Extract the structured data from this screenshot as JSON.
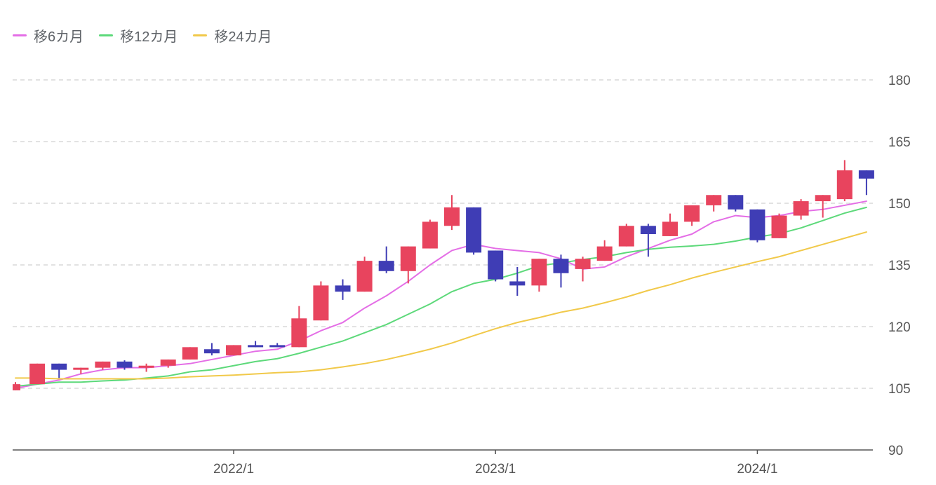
{
  "chart_data": {
    "type": "candlestick",
    "legend": {
      "position": "top-left"
    },
    "colors": {
      "up": "#e8445e",
      "down": "#3f3db5",
      "grid": "#d0d0d0",
      "axis": "#555555"
    },
    "y_axis": {
      "min": 90,
      "max": 180,
      "ticks": [
        90,
        105,
        120,
        135,
        150,
        165,
        180
      ],
      "position": "right",
      "grid": "dashed"
    },
    "x_axis": {
      "tick_labels": [
        "2022/1",
        "2023/1",
        "2024/1"
      ],
      "tick_index": [
        10,
        22,
        34
      ]
    },
    "candles": [
      {
        "o": 104.5,
        "h": 106.5,
        "l": 104.5,
        "c": 106.0
      },
      {
        "o": 106.0,
        "h": 111.0,
        "l": 106.0,
        "c": 111.0
      },
      {
        "o": 111.0,
        "h": 111.0,
        "l": 107.5,
        "c": 109.5
      },
      {
        "o": 109.5,
        "h": 110.0,
        "l": 108.5,
        "c": 110.0
      },
      {
        "o": 110.0,
        "h": 111.5,
        "l": 109.5,
        "c": 111.5
      },
      {
        "o": 111.5,
        "h": 111.8,
        "l": 109.5,
        "c": 110.0
      },
      {
        "o": 110.0,
        "h": 111.0,
        "l": 109.0,
        "c": 110.5
      },
      {
        "o": 110.5,
        "h": 112.0,
        "l": 110.0,
        "c": 112.0
      },
      {
        "o": 112.0,
        "h": 115.0,
        "l": 112.0,
        "c": 115.0
      },
      {
        "o": 114.5,
        "h": 116.0,
        "l": 113.0,
        "c": 113.5
      },
      {
        "o": 113.0,
        "h": 115.5,
        "l": 113.0,
        "c": 115.5
      },
      {
        "o": 115.5,
        "h": 116.5,
        "l": 115.0,
        "c": 115.0
      },
      {
        "o": 115.5,
        "h": 116.0,
        "l": 115.0,
        "c": 115.0
      },
      {
        "o": 115.0,
        "h": 125.0,
        "l": 115.0,
        "c": 122.0
      },
      {
        "o": 121.5,
        "h": 131.0,
        "l": 121.5,
        "c": 130.0
      },
      {
        "o": 130.0,
        "h": 131.5,
        "l": 126.5,
        "c": 128.5
      },
      {
        "o": 128.5,
        "h": 137.0,
        "l": 128.5,
        "c": 136.0
      },
      {
        "o": 136.0,
        "h": 139.5,
        "l": 133.0,
        "c": 133.5
      },
      {
        "o": 133.5,
        "h": 139.5,
        "l": 130.5,
        "c": 139.5
      },
      {
        "o": 139.0,
        "h": 146.0,
        "l": 139.0,
        "c": 145.5
      },
      {
        "o": 144.5,
        "h": 152.0,
        "l": 143.5,
        "c": 149.0
      },
      {
        "o": 149.0,
        "h": 149.0,
        "l": 137.5,
        "c": 138.0
      },
      {
        "o": 138.5,
        "h": 138.5,
        "l": 131.0,
        "c": 131.5
      },
      {
        "o": 131.0,
        "h": 134.5,
        "l": 127.5,
        "c": 130.0
      },
      {
        "o": 130.0,
        "h": 136.5,
        "l": 128.5,
        "c": 136.5
      },
      {
        "o": 136.5,
        "h": 137.5,
        "l": 129.5,
        "c": 133.0
      },
      {
        "o": 134.0,
        "h": 137.0,
        "l": 131.0,
        "c": 136.5
      },
      {
        "o": 136.0,
        "h": 141.0,
        "l": 136.0,
        "c": 139.5
      },
      {
        "o": 139.5,
        "h": 145.0,
        "l": 139.5,
        "c": 144.5
      },
      {
        "o": 144.5,
        "h": 145.0,
        "l": 137.0,
        "c": 142.5
      },
      {
        "o": 142.0,
        "h": 147.5,
        "l": 142.0,
        "c": 145.5
      },
      {
        "o": 145.5,
        "h": 149.5,
        "l": 144.5,
        "c": 149.5
      },
      {
        "o": 149.5,
        "h": 152.0,
        "l": 148.0,
        "c": 152.0
      },
      {
        "o": 152.0,
        "h": 152.0,
        "l": 148.0,
        "c": 148.5
      },
      {
        "o": 148.5,
        "h": 148.5,
        "l": 140.5,
        "c": 141.0
      },
      {
        "o": 141.5,
        "h": 147.5,
        "l": 141.5,
        "c": 147.0
      },
      {
        "o": 147.0,
        "h": 151.0,
        "l": 146.0,
        "c": 150.5
      },
      {
        "o": 150.5,
        "h": 152.0,
        "l": 146.5,
        "c": 152.0
      },
      {
        "o": 151.0,
        "h": 160.5,
        "l": 150.5,
        "c": 158.0
      },
      {
        "o": 158.0,
        "h": 158.0,
        "l": 152.0,
        "c": 156.0
      }
    ],
    "series": [
      {
        "name": "移6カ月",
        "color": "#e46ee6",
        "values": [
          105.0,
          106.0,
          107.0,
          108.5,
          109.5,
          110.0,
          110.0,
          110.5,
          111.0,
          112.0,
          113.0,
          114.0,
          114.5,
          116.5,
          119.0,
          121.0,
          124.5,
          127.5,
          131.0,
          135.0,
          138.5,
          140.0,
          139.0,
          138.5,
          138.0,
          136.5,
          134.0,
          134.5,
          137.0,
          139.0,
          141.0,
          142.5,
          145.5,
          147.0,
          146.5,
          147.0,
          148.0,
          148.5,
          149.5,
          150.5
        ]
      },
      {
        "name": "移12カ月",
        "color": "#5dd97a",
        "values": [
          105.5,
          106.0,
          106.5,
          106.5,
          106.8,
          107.0,
          107.5,
          108.0,
          109.0,
          109.5,
          110.5,
          111.5,
          112.2,
          113.5,
          115.0,
          116.5,
          118.5,
          120.5,
          123.0,
          125.5,
          128.5,
          130.5,
          131.5,
          133.0,
          134.8,
          135.5,
          136.3,
          137.0,
          138.0,
          138.8,
          139.3,
          139.6,
          140.0,
          140.8,
          141.8,
          142.6,
          144.0,
          145.8,
          147.6,
          149.0
        ]
      },
      {
        "name": "移24カ月",
        "color": "#f1c94a",
        "values": [
          107.5,
          107.5,
          107.3,
          107.3,
          107.3,
          107.3,
          107.3,
          107.5,
          107.8,
          108.0,
          108.2,
          108.5,
          108.8,
          109.0,
          109.5,
          110.2,
          111.0,
          112.0,
          113.2,
          114.5,
          116.0,
          117.8,
          119.5,
          121.0,
          122.2,
          123.5,
          124.5,
          125.8,
          127.2,
          128.8,
          130.2,
          131.8,
          133.2,
          134.5,
          135.8,
          137.0,
          138.5,
          140.0,
          141.5,
          143.0
        ]
      }
    ]
  }
}
